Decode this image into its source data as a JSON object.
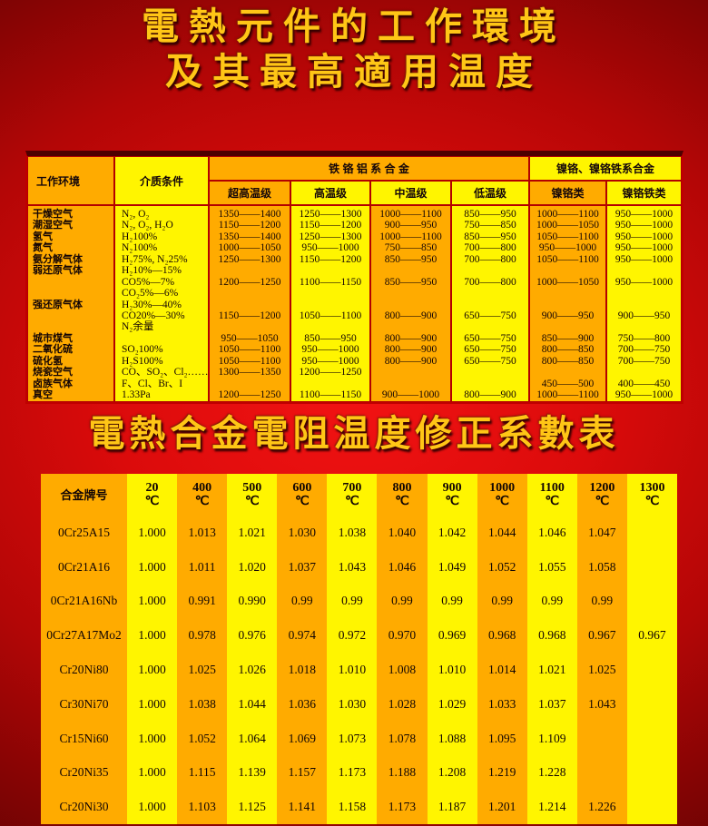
{
  "page": {
    "title_line1": "電熱元件的工作環境",
    "title_line2": "及其最高適用温度",
    "subtitle": "電熱合金電阻温度修正系數表"
  },
  "colors": {
    "orange": "#FFAB00",
    "yellow": "#FFF500",
    "grid_red": "#B30000",
    "background_red": "#DB0B0B",
    "title_gold": "#FFC616",
    "text_black": "#140505"
  },
  "env_table": {
    "header_env": "工作环境",
    "header_medium": "介质条件",
    "group_fecral": "铁 铬 铝 系 合 金",
    "group_nicr": "镍铬、镍铬铁系合金",
    "sub_headers": [
      "超高温级",
      "高温级",
      "中温级",
      "低温级",
      "镍铬类",
      "镍铬铁类"
    ],
    "columns": {
      "env": [
        "干燥空气",
        "潮湿空气",
        "氢气",
        "氮气",
        "氨分解气体",
        "弱还原气体",
        "",
        "",
        "强还原气体",
        "",
        "",
        "城市煤气",
        "二氧化硫",
        "硫化氢",
        "烧瓷空气",
        "卤族气体",
        "真空"
      ],
      "medium": [
        "N₂, O₂",
        "N₂, O₂, H₂O",
        "H₂100%",
        "N₂100%",
        "H₂75%, N₂25%",
        "H₂10%—15%",
        "CO5%—7%",
        "CO₂5%—6%",
        "H₂30%—40%",
        "CO20%—30%",
        "N₂余量",
        "",
        "SO₂100%",
        "H₂S100%",
        "CO、SO₂、Cl₂……",
        "F、Cl、Br、I",
        "1.33Pa"
      ],
      "uhigh": [
        "1350——1400",
        "1150——1200",
        "1350——1400",
        "1000——1050",
        "1250——1300",
        "",
        "1200——1250",
        "",
        "",
        "1150——1200",
        "",
        "950——1050",
        "1050——1100",
        "1050——1100",
        "1300——1350",
        "",
        "1200——1250"
      ],
      "high": [
        "1250——1300",
        "1150——1200",
        "1250——1300",
        "950——1000",
        "1150——1200",
        "",
        "1100——1150",
        "",
        "",
        "1050——1100",
        "",
        "850——950",
        "950——1000",
        "950——1000",
        "1200——1250",
        "",
        "1100——1150"
      ],
      "mid": [
        "1000——1100",
        "900——950",
        "1000——1100",
        "750——850",
        "850——950",
        "",
        "850——950",
        "",
        "",
        "800——900",
        "",
        "800——900",
        "800——900",
        "800——900",
        "",
        "",
        "900——1000"
      ],
      "low": [
        "850——950",
        "750——850",
        "850——950",
        "700——800",
        "700——800",
        "",
        "700——800",
        "",
        "",
        "650——750",
        "",
        "650——750",
        "650——750",
        "650——750",
        "",
        "",
        "800——900"
      ],
      "nicr": [
        "1000——1100",
        "1000——1050",
        "1050——1100",
        "950——1000",
        "1050——1100",
        "",
        "1000——1050",
        "",
        "",
        "900——950",
        "",
        "850——900",
        "800——850",
        "800——850",
        "",
        "450——500",
        "1000——1100"
      ],
      "nicrfe": [
        "950——1000",
        "950——1000",
        "950——1000",
        "950——1000",
        "950——1000",
        "",
        "950——1000",
        "",
        "",
        "900——950",
        "",
        "750——800",
        "700——750",
        "700——750",
        "",
        "400——450",
        "950——1000"
      ]
    }
  },
  "coeff_table": {
    "name_header": "合金牌号",
    "temp_unit": "℃",
    "temp_headers": [
      "20",
      "400",
      "500",
      "600",
      "700",
      "800",
      "900",
      "1000",
      "1100",
      "1200",
      "1300"
    ],
    "rows": [
      {
        "name": "0Cr25A15",
        "values": [
          "1.000",
          "1.013",
          "1.021",
          "1.030",
          "1.038",
          "1.040",
          "1.042",
          "1.044",
          "1.046",
          "1.047",
          ""
        ]
      },
      {
        "name": "0Cr21A16",
        "values": [
          "1.000",
          "1.011",
          "1.020",
          "1.037",
          "1.043",
          "1.046",
          "1.049",
          "1.052",
          "1.055",
          "1.058",
          ""
        ]
      },
      {
        "name": "0Cr21A16Nb",
        "values": [
          "1.000",
          "0.991",
          "0.990",
          "0.99",
          "0.99",
          "0.99",
          "0.99",
          "0.99",
          "0.99",
          "0.99",
          ""
        ]
      },
      {
        "name": "0Cr27A17Mo2",
        "values": [
          "1.000",
          "0.978",
          "0.976",
          "0.974",
          "0.972",
          "0.970",
          "0.969",
          "0.968",
          "0.968",
          "0.967",
          "0.967"
        ]
      },
      {
        "name": "Cr20Ni80",
        "values": [
          "1.000",
          "1.025",
          "1.026",
          "1.018",
          "1.010",
          "1.008",
          "1.010",
          "1.014",
          "1.021",
          "1.025",
          ""
        ]
      },
      {
        "name": "Cr30Ni70",
        "values": [
          "1.000",
          "1.038",
          "1.044",
          "1.036",
          "1.030",
          "1.028",
          "1.029",
          "1.033",
          "1.037",
          "1.043",
          ""
        ]
      },
      {
        "name": "Cr15Ni60",
        "values": [
          "1.000",
          "1.052",
          "1.064",
          "1.069",
          "1.073",
          "1.078",
          "1.088",
          "1.095",
          "1.109",
          "",
          ""
        ]
      },
      {
        "name": "Cr20Ni35",
        "values": [
          "1.000",
          "1.115",
          "1.139",
          "1.157",
          "1.173",
          "1.188",
          "1.208",
          "1.219",
          "1.228",
          "",
          ""
        ]
      },
      {
        "name": "Cr20Ni30",
        "values": [
          "1.000",
          "1.103",
          "1.125",
          "1.141",
          "1.158",
          "1.173",
          "1.187",
          "1.201",
          "1.214",
          "1.226",
          ""
        ]
      }
    ]
  }
}
